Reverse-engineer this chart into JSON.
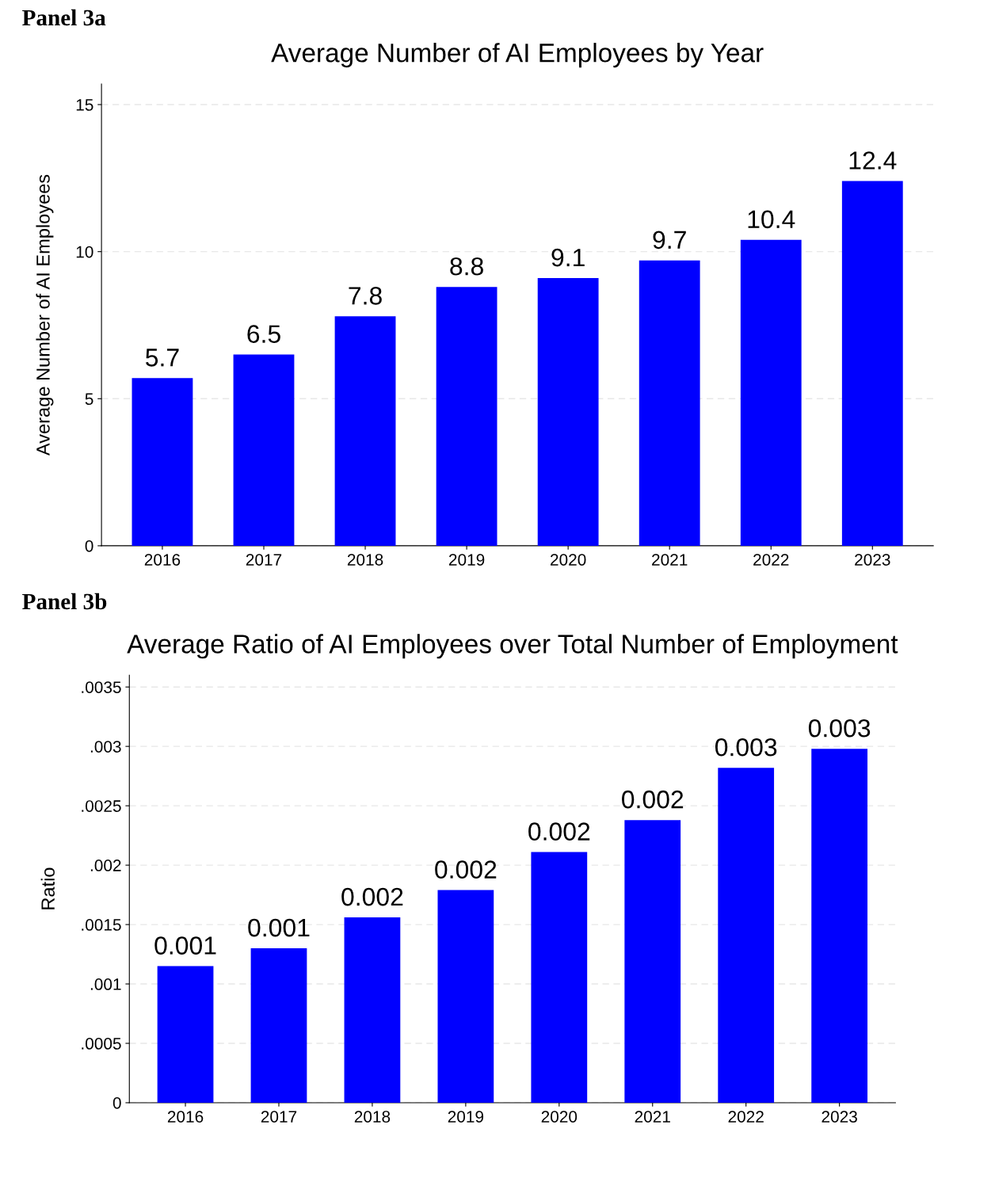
{
  "chart_data": [
    {
      "type": "bar",
      "title": "Average Number of AI Employees by Year",
      "ylabel": "Average Number of AI Employees",
      "annotations": [
        "Panel 3a"
      ],
      "categories": [
        "2016",
        "2017",
        "2018",
        "2019",
        "2020",
        "2021",
        "2022",
        "2023"
      ],
      "values": [
        5.7,
        6.5,
        7.8,
        8.8,
        9.1,
        9.7,
        10.4,
        12.4
      ],
      "color": "#0000ff",
      "ylim": [
        0,
        15.7
      ],
      "yticks": [
        0,
        5,
        10,
        15
      ],
      "grid": "y",
      "data_labels": true
    },
    {
      "type": "bar",
      "title": "Average Ratio of AI Employees over Total Number of Employment",
      "ylabel": "Ratio",
      "annotations": [
        "Panel 3b"
      ],
      "categories": [
        "2016",
        "2017",
        "2018",
        "2019",
        "2020",
        "2021",
        "2022",
        "2023"
      ],
      "values": [
        0.00115,
        0.0013,
        0.00156,
        0.00179,
        0.00211,
        0.00238,
        0.00282,
        0.00298
      ],
      "color": "#0000ff",
      "value_labels": [
        "0.001",
        "0.001",
        "0.002",
        "0.002",
        "0.002",
        "0.002",
        "0.003",
        "0.003"
      ],
      "ylim": [
        0,
        0.0036
      ],
      "yticks": [
        0,
        {
          "value": 0.0005,
          "label": ".0005"
        },
        {
          "value": 0.001,
          "label": ".001"
        },
        {
          "value": 0.0015,
          "label": ".0015"
        },
        {
          "value": 0.002,
          "label": ".002"
        },
        {
          "value": 0.0025,
          "label": ".0025"
        },
        {
          "value": 0.003,
          "label": ".003"
        },
        {
          "value": 0.0035,
          "label": ".0035"
        }
      ],
      "grid": "y"
    }
  ]
}
